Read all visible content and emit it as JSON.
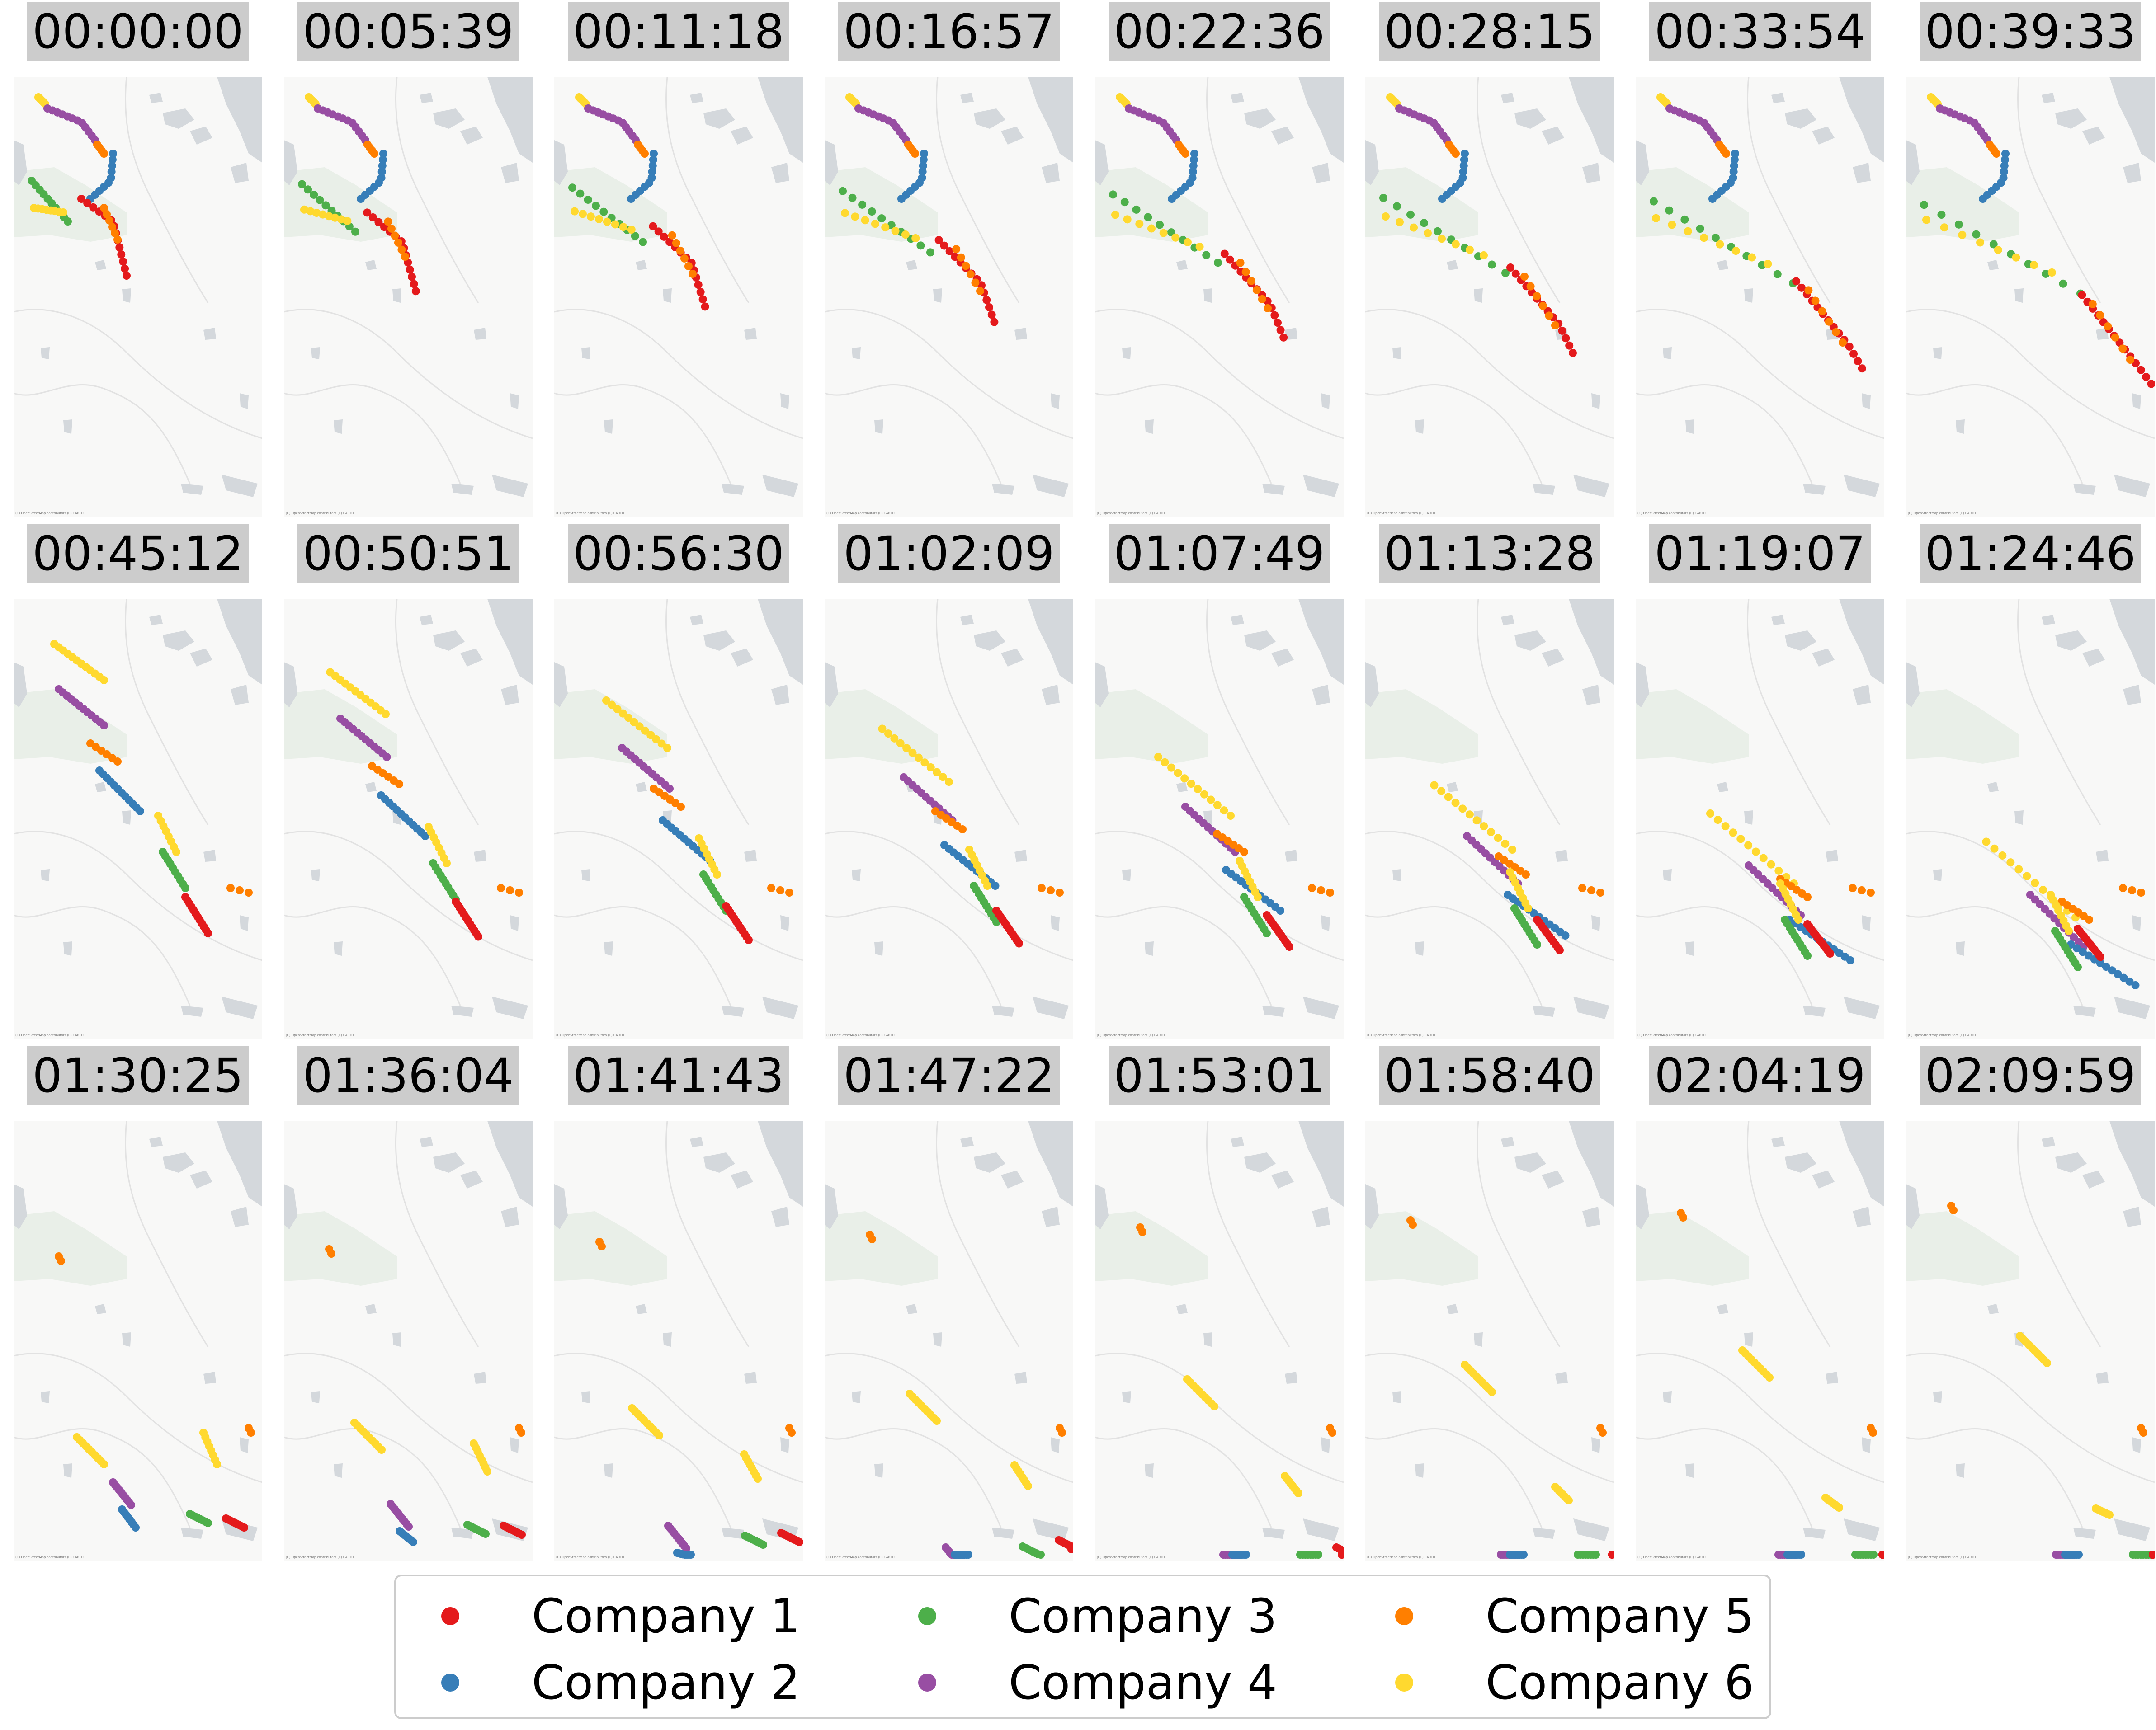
{
  "time_labels": [
    "00:00:00",
    "00:05:39",
    "00:11:18",
    "00:16:57",
    "00:22:36",
    "00:28:15",
    "00:33:54",
    "00:39:33",
    "00:45:12",
    "00:50:51",
    "00:56:30",
    "01:02:09",
    "01:07:49",
    "01:13:28",
    "01:19:07",
    "01:24:46",
    "01:30:25",
    "01:36:04",
    "01:41:43",
    "01:47:22",
    "01:53:01",
    "01:58:40",
    "02:04:19",
    "02:09:59"
  ],
  "attribution": "(C) OpenStreetMap contributors (C) CARTO",
  "legend": [
    {
      "label": "Company 1",
      "color": "#e41a1c"
    },
    {
      "label": "Company 2",
      "color": "#377eb8"
    },
    {
      "label": "Company 3",
      "color": "#4daf4a"
    },
    {
      "label": "Company 4",
      "color": "#984ea3"
    },
    {
      "label": "Company 5",
      "color": "#ff7f00"
    },
    {
      "label": "Company 6",
      "color": "#ffd92f"
    }
  ],
  "map_style": {
    "land": "#f8f8f7",
    "water": "#d4d8dc",
    "park": "#e9efe8",
    "road": "#e2e2e2"
  }
}
